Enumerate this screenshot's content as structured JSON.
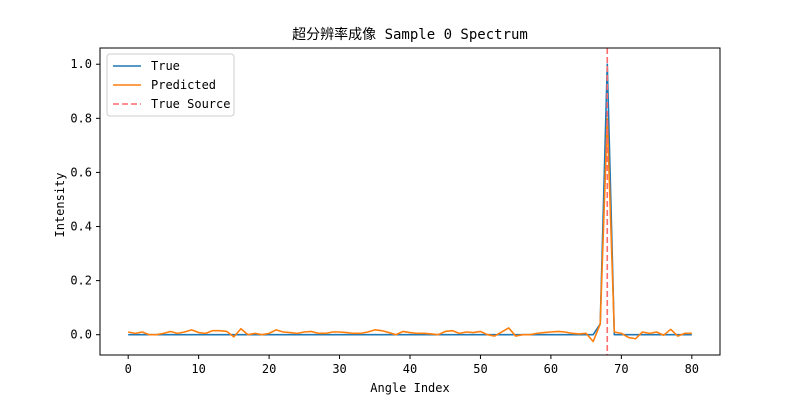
{
  "chart_data": {
    "type": "line",
    "title": "超分辨率成像 Sample 0 Spectrum",
    "xlabel": "Angle Index",
    "ylabel": "Intensity",
    "xlim": [
      -4,
      84
    ],
    "ylim": [
      -0.075,
      1.06
    ],
    "xticks": [
      0,
      10,
      20,
      30,
      40,
      50,
      60,
      70,
      80
    ],
    "yticks": [
      0.0,
      0.2,
      0.4,
      0.6,
      0.8,
      1.0
    ],
    "xtick_labels": [
      "0",
      "10",
      "20",
      "30",
      "40",
      "50",
      "60",
      "70",
      "80"
    ],
    "ytick_labels": [
      "0.0",
      "0.2",
      "0.4",
      "0.6",
      "0.8",
      "1.0"
    ],
    "grid": false,
    "legend_position": "upper-left",
    "x": [
      0,
      1,
      2,
      3,
      4,
      5,
      6,
      7,
      8,
      9,
      10,
      11,
      12,
      13,
      14,
      15,
      16,
      17,
      18,
      19,
      20,
      21,
      22,
      23,
      24,
      25,
      26,
      27,
      28,
      29,
      30,
      31,
      32,
      33,
      34,
      35,
      36,
      37,
      38,
      39,
      40,
      41,
      42,
      43,
      44,
      45,
      46,
      47,
      48,
      49,
      50,
      51,
      52,
      53,
      54,
      55,
      56,
      57,
      58,
      59,
      60,
      61,
      62,
      63,
      64,
      65,
      66,
      67,
      68,
      69,
      70,
      71,
      72,
      73,
      74,
      75,
      76,
      77,
      78,
      79,
      80
    ],
    "series": [
      {
        "name": "True",
        "color": "#1f77b4",
        "style": "solid",
        "values": [
          0,
          0,
          0,
          0,
          0,
          0,
          0,
          0,
          0,
          0,
          0,
          0,
          0,
          0,
          0,
          0,
          0,
          0,
          0,
          0,
          0,
          0,
          0,
          0,
          0,
          0,
          0,
          0,
          0,
          0,
          0,
          0,
          0,
          0,
          0,
          0,
          0,
          0,
          0,
          0,
          0,
          0,
          0,
          0,
          0,
          0,
          0,
          0,
          0,
          0,
          0,
          0,
          0,
          0,
          0,
          0,
          0,
          0,
          0,
          0,
          0,
          0,
          0,
          0,
          0,
          0,
          0,
          0.04,
          1.0,
          0,
          0,
          0,
          0,
          0,
          0,
          0,
          0,
          0,
          0,
          0,
          0
        ]
      },
      {
        "name": "Predicted",
        "color": "#ff7f0e",
        "style": "solid",
        "values": [
          0.01,
          0.005,
          0.01,
          0.0,
          0.0,
          0.005,
          0.012,
          0.005,
          0.01,
          0.018,
          0.008,
          0.005,
          0.015,
          0.015,
          0.012,
          -0.008,
          0.022,
          0.0,
          0.005,
          0.0,
          0.005,
          0.018,
          0.01,
          0.008,
          0.005,
          0.01,
          0.012,
          0.005,
          0.005,
          0.01,
          0.01,
          0.008,
          0.005,
          0.005,
          0.01,
          0.018,
          0.015,
          0.008,
          0.0,
          0.012,
          0.008,
          0.005,
          0.005,
          0.003,
          0.0,
          0.012,
          0.015,
          0.005,
          0.01,
          0.008,
          0.012,
          0.0,
          -0.005,
          0.01,
          0.025,
          -0.005,
          0.0,
          0.0,
          0.005,
          0.008,
          0.01,
          0.012,
          0.01,
          0.005,
          0.003,
          0.005,
          -0.025,
          0.04,
          0.8,
          0.01,
          0.005,
          -0.01,
          -0.015,
          0.01,
          0.005,
          0.01,
          -0.002,
          0.02,
          -0.005,
          0.005,
          0.005
        ]
      },
      {
        "name": "True Source",
        "color": "#ff6b6b",
        "style": "dashed",
        "vline_x": 68
      }
    ]
  }
}
